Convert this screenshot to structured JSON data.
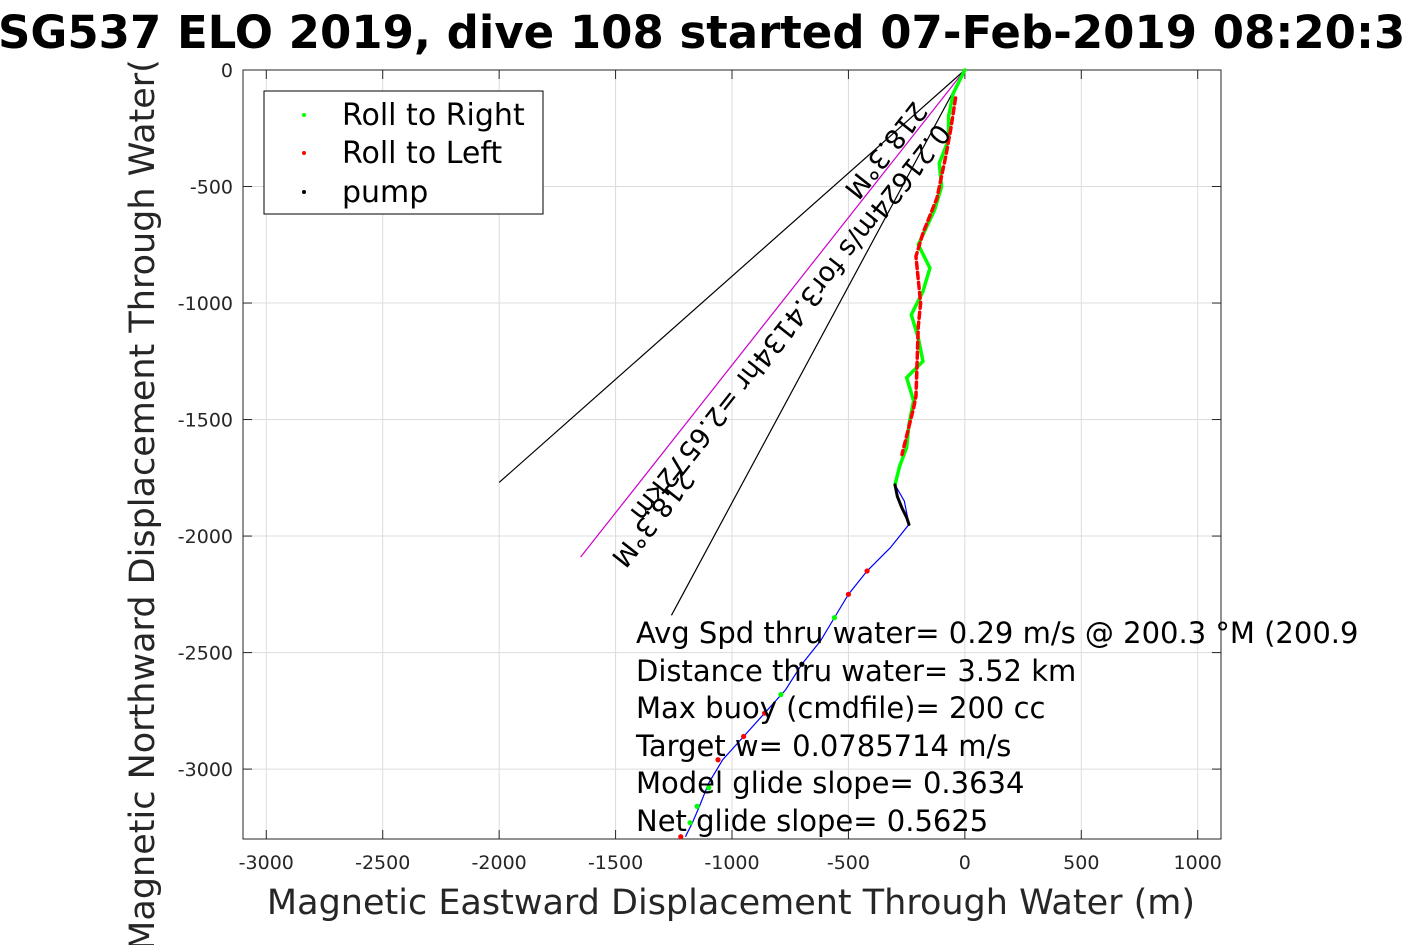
{
  "chart_data": {
    "type": "scatter",
    "title": "SG537 ELO 2019, dive 108 started 07-Feb-2019 08:20:3",
    "xlabel": "Magnetic Eastward Displacement Through Water (m)",
    "ylabel": "Magnetic Northward Displacement Through Water(",
    "xlim": [
      -3100,
      1100
    ],
    "ylim": [
      -3300,
      0
    ],
    "xticks": [
      -3000,
      -2500,
      -2000,
      -1500,
      -1000,
      -500,
      0,
      500,
      1000
    ],
    "yticks": [
      0,
      -500,
      -1000,
      -1500,
      -2000,
      -2500,
      -3000
    ],
    "grid": true,
    "legend_position": "top-left",
    "legend": [
      {
        "label": "Roll to Right",
        "color": "#00ff00"
      },
      {
        "label": "Roll to Left",
        "color": "#ff0000"
      },
      {
        "label": "pump",
        "color": "#000000"
      }
    ],
    "track": {
      "color": "#0000ff",
      "points": [
        [
          0,
          0
        ],
        [
          -50,
          -100
        ],
        [
          -70,
          -200
        ],
        [
          -70,
          -300
        ],
        [
          -110,
          -400
        ],
        [
          -100,
          -500
        ],
        [
          -130,
          -600
        ],
        [
          -200,
          -750
        ],
        [
          -150,
          -850
        ],
        [
          -180,
          -950
        ],
        [
          -230,
          -1050
        ],
        [
          -200,
          -1150
        ],
        [
          -180,
          -1250
        ],
        [
          -250,
          -1320
        ],
        [
          -220,
          -1420
        ],
        [
          -240,
          -1520
        ],
        [
          -250,
          -1620
        ],
        [
          -280,
          -1700
        ],
        [
          -300,
          -1780
        ],
        [
          -260,
          -1850
        ],
        [
          -240,
          -1950
        ],
        [
          -320,
          -2050
        ],
        [
          -420,
          -2150
        ],
        [
          -500,
          -2250
        ],
        [
          -560,
          -2350
        ],
        [
          -620,
          -2450
        ],
        [
          -700,
          -2550
        ],
        [
          -770,
          -2660
        ],
        [
          -860,
          -2760
        ],
        [
          -950,
          -2860
        ],
        [
          -1040,
          -2960
        ],
        [
          -1100,
          -3060
        ],
        [
          -1140,
          -3160
        ],
        [
          -1170,
          -3230
        ],
        [
          -1200,
          -3290
        ]
      ],
      "segments": [
        {
          "kind": "roll-right",
          "color": "#00ff00",
          "x": [
            0,
            -50,
            -70,
            -70,
            -110,
            -100,
            -130,
            -200,
            -150,
            -180,
            -230,
            -200,
            -180,
            -250,
            -220,
            -240,
            -250,
            -280,
            -300
          ],
          "y": [
            0,
            -100,
            -200,
            -300,
            -400,
            -500,
            -600,
            -750,
            -850,
            -950,
            -1050,
            -1150,
            -1250,
            -1320,
            -1420,
            -1520,
            -1620,
            -1700,
            -1780
          ]
        },
        {
          "kind": "roll-left",
          "color": "#ff0000",
          "x": [
            -40,
            -60,
            -80,
            -120,
            -180,
            -210,
            -190,
            -200,
            -210,
            -220,
            -245,
            -270
          ],
          "y": [
            -120,
            -250,
            -360,
            -550,
            -700,
            -800,
            -1000,
            -1100,
            -1400,
            -1450,
            -1550,
            -1650
          ]
        },
        {
          "kind": "pump",
          "color": "#000000",
          "x": [
            -300,
            -290,
            -270,
            -250,
            -240
          ],
          "y": [
            -1780,
            -1830,
            -1880,
            -1920,
            -1950
          ]
        }
      ],
      "markers": [
        {
          "x": -420,
          "y": -2150,
          "kind": "roll-left"
        },
        {
          "x": -500,
          "y": -2250,
          "kind": "roll-left"
        },
        {
          "x": -560,
          "y": -2350,
          "kind": "roll-right"
        },
        {
          "x": -700,
          "y": -2550,
          "kind": "pump"
        },
        {
          "x": -790,
          "y": -2680,
          "kind": "roll-right"
        },
        {
          "x": -860,
          "y": -2760,
          "kind": "roll-left"
        },
        {
          "x": -950,
          "y": -2860,
          "kind": "roll-left"
        },
        {
          "x": -1060,
          "y": -2960,
          "kind": "roll-left"
        },
        {
          "x": -1100,
          "y": -3080,
          "kind": "roll-right"
        },
        {
          "x": -1150,
          "y": -3160,
          "kind": "roll-right"
        },
        {
          "x": -1180,
          "y": -3230,
          "kind": "roll-right"
        },
        {
          "x": -1220,
          "y": -3290,
          "kind": "roll-left"
        }
      ]
    },
    "guide_lines": [
      {
        "from": [
          0,
          0
        ],
        "to": [
          -2000,
          -1770
        ],
        "color": "#000000"
      },
      {
        "from": [
          0,
          0
        ],
        "to": [
          -1260,
          -2340
        ],
        "color": "#000000"
      },
      {
        "from": [
          0,
          0
        ],
        "to": [
          -1650,
          -2090
        ],
        "color": "#cc00cc"
      }
    ],
    "rotated_labels": [
      {
        "text": "218.3°M",
        "at": [
          -370,
          -320
        ],
        "angle": 218.3
      },
      {
        "text": "0.21624m/s for3.4134hr =2.6572km",
        "at": [
          -780,
          -1060
        ],
        "angle": 218.3
      },
      {
        "text": "218.3°M",
        "at": [
          -1370,
          -1900
        ],
        "angle": 218.3
      }
    ],
    "annotations": [
      "Avg Spd thru water=  0.29 m/s @ 200.3 °M (200.9",
      "Distance thru water=  3.52 km",
      "Max buoy (cmdfile)= 200 cc",
      "Target w= 0.0785714 m/s",
      "Model glide slope= 0.3634",
      "Net glide slope= 0.5625"
    ]
  }
}
